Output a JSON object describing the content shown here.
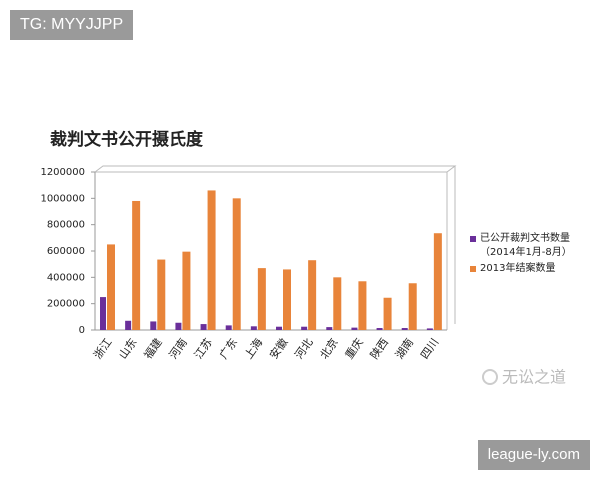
{
  "chart_data": {
    "type": "bar",
    "title": "裁判文书公开摄氏度",
    "categories": [
      "浙江",
      "山东",
      "福建",
      "河南",
      "江苏",
      "广东",
      "上海",
      "安徽",
      "河北",
      "北京",
      "重庆",
      "陕西",
      "湖南",
      "四川"
    ],
    "series": [
      {
        "name": "已公开裁判文书数量（2014年1月-8月）",
        "color": "#6a2f9a",
        "values": [
          250000,
          70000,
          65000,
          55000,
          45000,
          35000,
          28000,
          25000,
          25000,
          22000,
          18000,
          15000,
          15000,
          12000
        ]
      },
      {
        "name": "2013年结案数量",
        "color": "#e8843a",
        "values": [
          650000,
          980000,
          535000,
          595000,
          1060000,
          1000000,
          470000,
          460000,
          530000,
          400000,
          370000,
          245000,
          355000,
          735000
        ]
      }
    ],
    "ylim": [
      0,
      1200000
    ],
    "yticks": [
      0,
      200000,
      400000,
      600000,
      800000,
      1000000,
      1200000
    ],
    "grid": false,
    "legend": "right"
  },
  "overlays": {
    "tag": "TG: MYYJJPP",
    "brand": "无讼之道",
    "site": "league-ly.com"
  }
}
